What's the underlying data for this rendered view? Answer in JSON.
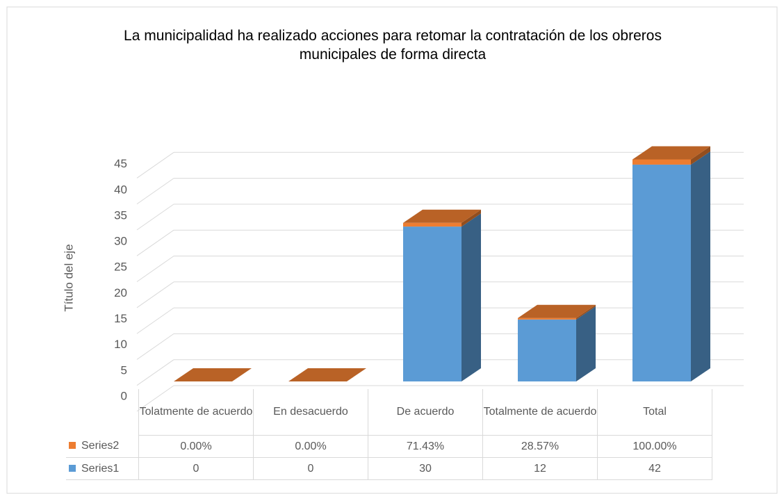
{
  "chart_data": {
    "type": "bar3d_stacked",
    "title": "La municipalidad ha realizado acciones para retomar la contratación de los obreros municipales de forma directa",
    "y_axis_label": "Título del eje",
    "categories": [
      "Tolatmente de acuerdo",
      "En desacuerdo",
      "De acuerdo",
      "Totalmente de acuerdo",
      "Total"
    ],
    "series": [
      {
        "name": "Series1",
        "color": "#5b9bd5",
        "values": [
          0,
          0,
          30,
          12,
          42
        ]
      },
      {
        "name": "Series2",
        "color": "#ed7d31",
        "values": [
          0,
          0,
          0.7143,
          0.2857,
          1
        ],
        "value_labels": [
          "0.00%",
          "0.00%",
          "71.43%",
          "28.57%",
          "100.00%"
        ]
      }
    ],
    "ylim": [
      0,
      45
    ],
    "yticks": [
      0,
      5,
      10,
      15,
      20,
      25,
      30,
      35,
      40,
      45
    ],
    "grid": true
  }
}
